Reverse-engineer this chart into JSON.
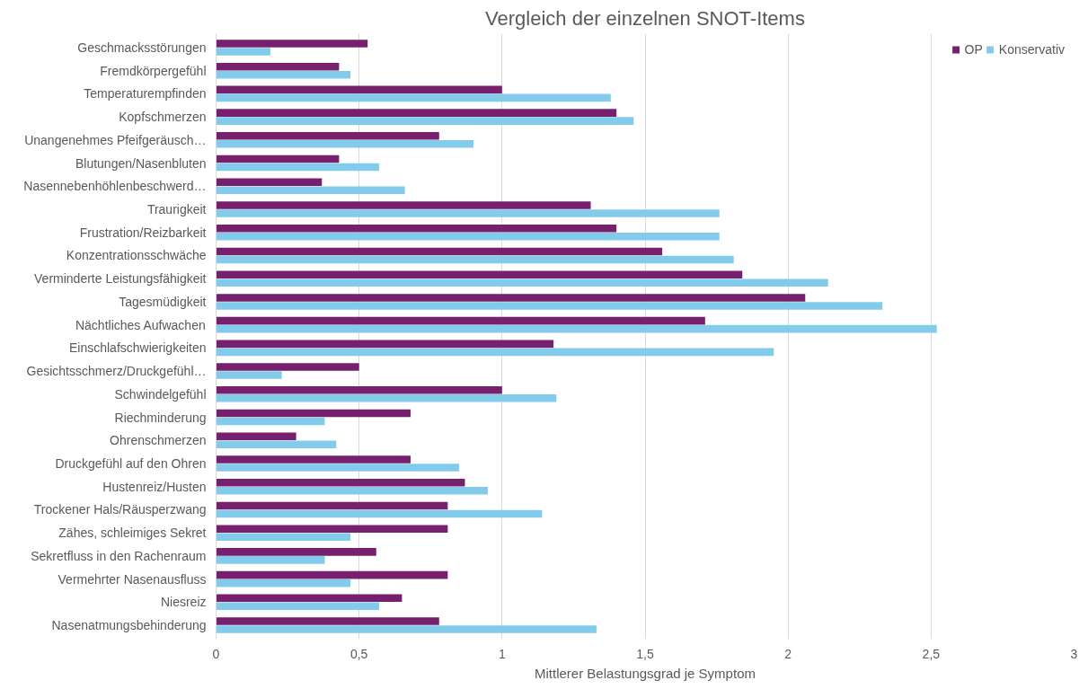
{
  "chart_data": {
    "type": "bar",
    "orientation": "horizontal",
    "title": "Vergleich der einzelnen SNOT-Items",
    "xlabel": "Mittlerer Belastungsgrad je Symptom",
    "categories": [
      "Geschmacksstörungen",
      "Fremdkörpergefühl",
      "Temperaturempfinden",
      "Kopfschmerzen",
      "Unangenehmes Pfeifgeräusch…",
      "Blutungen/Nasenbluten",
      "Nasennebenhöhlenbeschwerd…",
      "Traurigkeit",
      "Frustration/Reizbarkeit",
      "Konzentrationsschwäche",
      "Verminderte Leistungsfähigkeit",
      "Tagesmüdigkeit",
      "Nächtliches Aufwachen",
      "Einschlafschwierigkeiten",
      "Gesichtsschmerz/Druckgefühl…",
      "Schwindelgefühl",
      "Riechminderung",
      "Ohrenschmerzen",
      "Druckgefühl auf den Ohren",
      "Hustenreiz/Husten",
      "Trockener Hals/Räusperzwang",
      "Zähes, schleimiges Sekret",
      "Sekretfluss in den Rachenraum",
      "Vermehrter Nasenausfluss",
      "Niesreiz",
      "Nasenatmungsbehinderung"
    ],
    "series": [
      {
        "name": "OP",
        "color": "#76206e",
        "values": [
          0.53,
          0.43,
          1.0,
          1.4,
          0.78,
          0.43,
          0.37,
          1.31,
          1.4,
          1.56,
          1.84,
          2.06,
          1.71,
          1.18,
          0.5,
          1.0,
          0.68,
          0.28,
          0.68,
          0.87,
          0.81,
          0.81,
          0.56,
          0.81,
          0.65,
          0.78
        ]
      },
      {
        "name": "Konservativ",
        "color": "#83cbeb",
        "values": [
          0.19,
          0.47,
          1.38,
          1.46,
          0.9,
          0.57,
          0.66,
          1.76,
          1.76,
          1.81,
          2.14,
          2.33,
          2.52,
          1.95,
          0.23,
          1.19,
          0.38,
          0.42,
          0.85,
          0.95,
          1.14,
          0.47,
          0.38,
          0.47,
          0.57,
          1.33
        ]
      }
    ],
    "xlim": [
      0,
      3
    ],
    "xticks": [
      0,
      {
        "value": 0.5,
        "label": "0,5"
      },
      1,
      {
        "value": 1.5,
        "label": "1,5"
      },
      2,
      {
        "value": 2.5,
        "label": "2,5"
      },
      3
    ],
    "grid": "x",
    "legend": "top right"
  }
}
